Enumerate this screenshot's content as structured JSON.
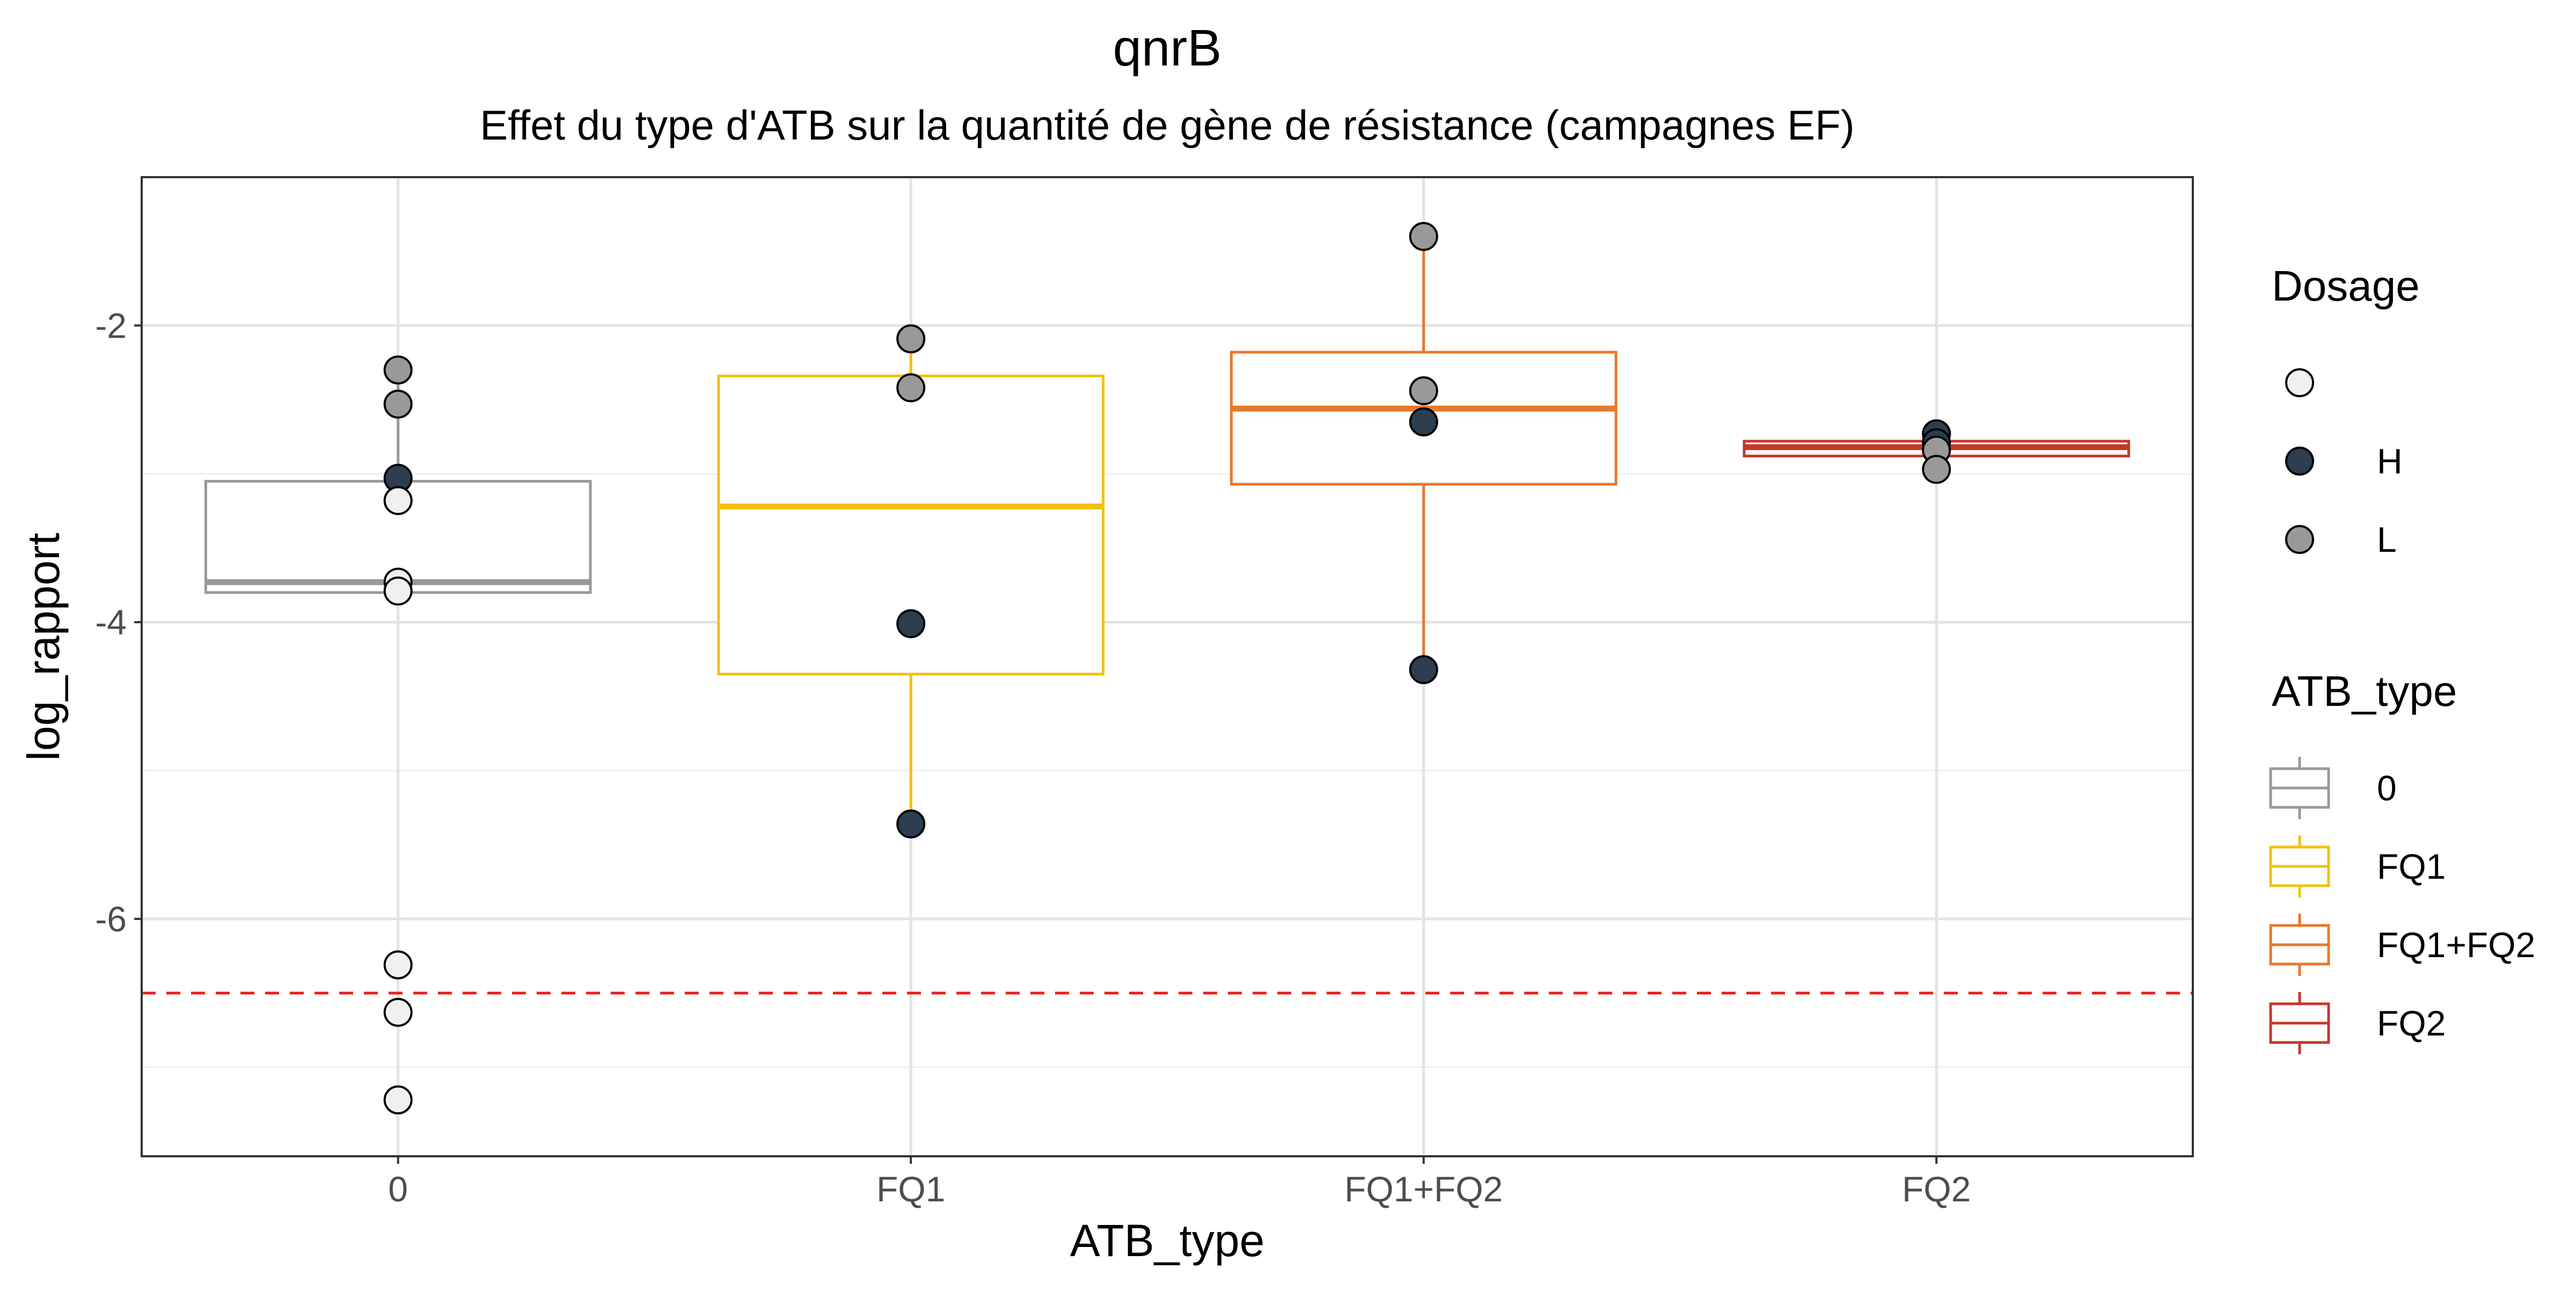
{
  "chart_data": {
    "type": "box",
    "title": "qnrB",
    "subtitle": "Effet du type d'ATB sur la quantité de gène de résistance (campagnes EF)",
    "xlabel": "ATB_type",
    "ylabel": "log_rapport",
    "categories": [
      "0",
      "FQ1",
      "FQ1+FQ2",
      "FQ2"
    ],
    "ylim": [
      -7.6,
      -1.0
    ],
    "yticks": [
      -6,
      -4,
      -2
    ],
    "ytick_labels": [
      "-6",
      "-4",
      "-2"
    ],
    "grid": true,
    "reference_line": {
      "y": -6.5,
      "color": "#ee1c1c",
      "style": "dashed"
    },
    "boxes": [
      {
        "category": "0",
        "q1": -3.8,
        "median": -3.73,
        "q3": -3.05,
        "whisker_low": -3.8,
        "whisker_high": -2.3,
        "color": "#999999"
      },
      {
        "category": "FQ1",
        "q1": -4.35,
        "median": -3.22,
        "q3": -2.34,
        "whisker_low": -5.36,
        "whisker_high": -2.09,
        "color": "#f2c10d"
      },
      {
        "category": "FQ1+FQ2",
        "q1": -3.07,
        "median": -2.56,
        "q3": -2.18,
        "whisker_low": -4.32,
        "whisker_high": -1.4,
        "color": "#e8782a"
      },
      {
        "category": "FQ2",
        "q1": -2.88,
        "median": -2.82,
        "q3": -2.78,
        "whisker_low": -2.97,
        "whisker_high": -2.73,
        "color": "#c5382a"
      }
    ],
    "points": [
      {
        "category": "0",
        "y": -2.3,
        "dosage": "L"
      },
      {
        "category": "0",
        "y": -2.53,
        "dosage": "L"
      },
      {
        "category": "0",
        "y": -3.03,
        "dosage": "H"
      },
      {
        "category": "0",
        "y": -3.18,
        "dosage": ""
      },
      {
        "category": "0",
        "y": -3.73,
        "dosage": ""
      },
      {
        "category": "0",
        "y": -3.79,
        "dosage": ""
      },
      {
        "category": "0",
        "y": -6.31,
        "dosage": ""
      },
      {
        "category": "0",
        "y": -6.63,
        "dosage": ""
      },
      {
        "category": "0",
        "y": -7.22,
        "dosage": ""
      },
      {
        "category": "FQ1",
        "y": -2.09,
        "dosage": "L"
      },
      {
        "category": "FQ1",
        "y": -2.42,
        "dosage": "L"
      },
      {
        "category": "FQ1",
        "y": -4.01,
        "dosage": "H"
      },
      {
        "category": "FQ1",
        "y": -5.36,
        "dosage": "H"
      },
      {
        "category": "FQ1+FQ2",
        "y": -1.4,
        "dosage": "L"
      },
      {
        "category": "FQ1+FQ2",
        "y": -2.44,
        "dosage": "L"
      },
      {
        "category": "FQ1+FQ2",
        "y": -2.65,
        "dosage": "H"
      },
      {
        "category": "FQ1+FQ2",
        "y": -4.32,
        "dosage": "H"
      },
      {
        "category": "FQ2",
        "y": -2.73,
        "dosage": "H"
      },
      {
        "category": "FQ2",
        "y": -2.79,
        "dosage": "H"
      },
      {
        "category": "FQ2",
        "y": -2.84,
        "dosage": "L"
      },
      {
        "category": "FQ2",
        "y": -2.97,
        "dosage": "L"
      }
    ],
    "dosage_colors": {
      "": "#f0f0f0",
      "H": "#2c3e50",
      "L": "#999999"
    },
    "legends": [
      {
        "title": "Dosage",
        "placement": "right",
        "kind": "point",
        "items": [
          {
            "label": "",
            "key": ""
          },
          {
            "label": "H",
            "key": "H"
          },
          {
            "label": "L",
            "key": "L"
          }
        ]
      },
      {
        "title": "ATB_type",
        "placement": "right",
        "kind": "box",
        "items": [
          {
            "label": "0",
            "color": "#999999"
          },
          {
            "label": "FQ1",
            "color": "#f2c10d"
          },
          {
            "label": "FQ1+FQ2",
            "color": "#e8782a"
          },
          {
            "label": "FQ2",
            "color": "#c5382a"
          }
        ]
      }
    ]
  }
}
